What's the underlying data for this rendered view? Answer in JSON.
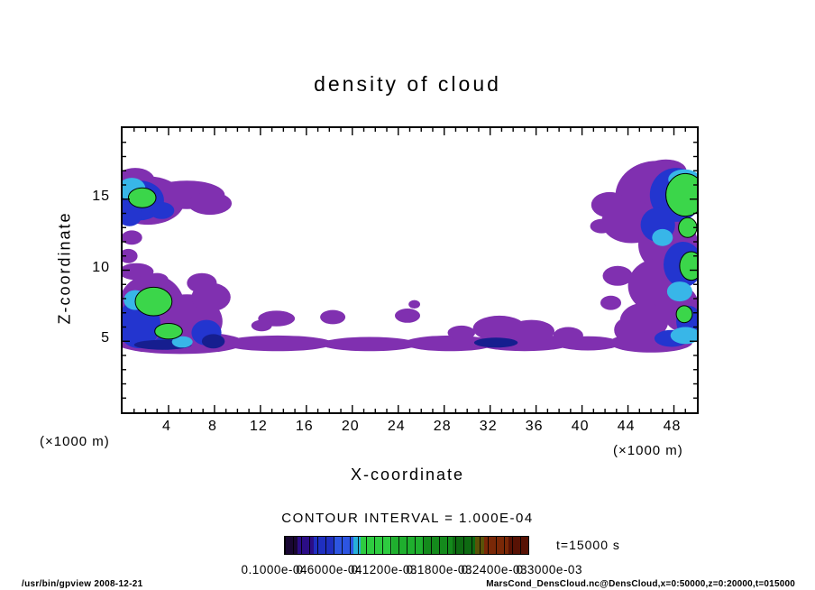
{
  "title": "density of cloud",
  "axes": {
    "x": {
      "label": "X-coordinate",
      "unit_left": "(×1000 m)",
      "unit_right": "(×1000 m)",
      "ticks": [
        4,
        8,
        12,
        16,
        20,
        24,
        28,
        32,
        36,
        40,
        44,
        48
      ],
      "range": [
        0,
        50
      ]
    },
    "y": {
      "label": "Z-coordinate",
      "ticks": [
        5,
        10,
        15
      ],
      "range": [
        0,
        20
      ]
    }
  },
  "colorbar": {
    "title": "CONTOUR INTERVAL = 1.000E-04",
    "labels": [
      "0.1000e-04",
      "0.6000e-04",
      "0.1200e-03",
      "0.1800e-03",
      "0.2400e-03",
      "0.3000e-03"
    ],
    "segments": [
      {
        "color": "#190733",
        "pct": 5
      },
      {
        "color": "#2b0d86",
        "pct": 7
      },
      {
        "color": "#1f2fc0",
        "pct": 8
      },
      {
        "color": "#2d55e2",
        "pct": 8
      },
      {
        "color": "#27b0d8",
        "pct": 3
      },
      {
        "color": "#2ecc40",
        "pct": 13
      },
      {
        "color": "#1faf2e",
        "pct": 13
      },
      {
        "color": "#148a1c",
        "pct": 12
      },
      {
        "color": "#0e6a12",
        "pct": 9
      },
      {
        "color": "#5a5208",
        "pct": 4
      },
      {
        "color": "#7a2807",
        "pct": 10
      },
      {
        "color": "#581204",
        "pct": 8
      }
    ]
  },
  "time_label": "t=15000 s",
  "footer": {
    "left": "/usr/bin/gpview  2008-12-21",
    "right": "MarsCond_DensCloud.nc@DensCloud,x=0:50000,z=0:20000,t=015000"
  },
  "chart_data": {
    "type": "heatmap",
    "title": "density of cloud",
    "xlabel": "X-coordinate (×1000 m)",
    "ylabel": "Z-coordinate (×1000 m)",
    "xlim": [
      0,
      50
    ],
    "ylim": [
      0,
      20
    ],
    "contour_interval": "1.000E-04",
    "time": "t=15000 s",
    "palette": {
      "purple": "#8030b0",
      "blue": "#2335cf",
      "darkblue": "#161e8f",
      "cyan": "#38b6e8",
      "green": "#3bd64a"
    },
    "regions": [
      {
        "x": 2.2,
        "z": 14.9,
        "rx": 3.2,
        "rz": 1.7,
        "c": "purple"
      },
      {
        "x": 5.6,
        "z": 15.3,
        "rx": 3.3,
        "rz": 1.0,
        "c": "purple"
      },
      {
        "x": 7.6,
        "z": 14.7,
        "rx": 1.9,
        "rz": 0.8,
        "c": "purple"
      },
      {
        "x": 1.1,
        "z": 16.3,
        "rx": 1.7,
        "rz": 0.9,
        "c": "purple"
      },
      {
        "x": 0.8,
        "z": 12.3,
        "rx": 0.9,
        "rz": 0.5,
        "c": "purple"
      },
      {
        "x": 1.2,
        "z": 9.9,
        "rx": 1.5,
        "rz": 0.6,
        "c": "purple"
      },
      {
        "x": 0.5,
        "z": 11.0,
        "rx": 0.8,
        "rz": 0.5,
        "c": "purple"
      },
      {
        "x": 2.5,
        "z": 7.4,
        "rx": 2.9,
        "rz": 2.3,
        "c": "purple"
      },
      {
        "x": 5.6,
        "z": 6.4,
        "rx": 3.1,
        "rz": 1.9,
        "c": "purple"
      },
      {
        "x": 7.7,
        "z": 8.1,
        "rx": 1.7,
        "rz": 1.0,
        "c": "purple"
      },
      {
        "x": 6.9,
        "z": 9.1,
        "rx": 1.3,
        "rz": 0.7,
        "c": "purple"
      },
      {
        "x": 3.0,
        "z": 9.3,
        "rx": 1.0,
        "rz": 0.5,
        "c": "purple"
      },
      {
        "x": 5.0,
        "z": 4.9,
        "rx": 5.6,
        "rz": 0.8,
        "c": "purple"
      },
      {
        "x": 13.5,
        "z": 4.85,
        "rx": 4.8,
        "rz": 0.55,
        "c": "purple"
      },
      {
        "x": 21.5,
        "z": 4.8,
        "rx": 4.2,
        "rz": 0.5,
        "c": "purple"
      },
      {
        "x": 28.5,
        "z": 4.85,
        "rx": 4.0,
        "rz": 0.55,
        "c": "purple"
      },
      {
        "x": 35.0,
        "z": 4.9,
        "rx": 4.2,
        "rz": 0.6,
        "c": "purple"
      },
      {
        "x": 40.5,
        "z": 4.85,
        "rx": 2.8,
        "rz": 0.5,
        "c": "purple"
      },
      {
        "x": 13.4,
        "z": 6.6,
        "rx": 1.6,
        "rz": 0.55,
        "c": "purple"
      },
      {
        "x": 12.1,
        "z": 6.1,
        "rx": 0.9,
        "rz": 0.4,
        "c": "purple"
      },
      {
        "x": 18.3,
        "z": 6.7,
        "rx": 1.1,
        "rz": 0.5,
        "c": "purple"
      },
      {
        "x": 24.8,
        "z": 6.8,
        "rx": 1.1,
        "rz": 0.5,
        "c": "purple"
      },
      {
        "x": 25.4,
        "z": 7.6,
        "rx": 0.5,
        "rz": 0.3,
        "c": "purple"
      },
      {
        "x": 32.8,
        "z": 5.9,
        "rx": 2.3,
        "rz": 0.9,
        "c": "purple"
      },
      {
        "x": 35.6,
        "z": 5.7,
        "rx": 2.0,
        "rz": 0.8,
        "c": "purple"
      },
      {
        "x": 38.8,
        "z": 5.4,
        "rx": 1.3,
        "rz": 0.6,
        "c": "purple"
      },
      {
        "x": 29.5,
        "z": 5.6,
        "rx": 1.2,
        "rz": 0.5,
        "c": "purple"
      },
      {
        "x": 46.5,
        "z": 15.2,
        "rx": 3.6,
        "rz": 2.5,
        "c": "purple"
      },
      {
        "x": 47.3,
        "z": 17.0,
        "rx": 1.8,
        "rz": 0.8,
        "c": "purple"
      },
      {
        "x": 44.3,
        "z": 13.4,
        "rx": 2.6,
        "rz": 1.5,
        "c": "purple"
      },
      {
        "x": 47.5,
        "z": 11.8,
        "rx": 2.6,
        "rz": 2.0,
        "c": "purple"
      },
      {
        "x": 46.6,
        "z": 8.9,
        "rx": 2.6,
        "rz": 1.9,
        "c": "purple"
      },
      {
        "x": 45.4,
        "z": 6.4,
        "rx": 2.1,
        "rz": 1.3,
        "c": "purple"
      },
      {
        "x": 48.6,
        "z": 7.3,
        "rx": 1.6,
        "rz": 1.6,
        "c": "purple"
      },
      {
        "x": 42.4,
        "z": 14.6,
        "rx": 1.6,
        "rz": 0.9,
        "c": "purple"
      },
      {
        "x": 41.7,
        "z": 13.1,
        "rx": 1.0,
        "rz": 0.5,
        "c": "purple"
      },
      {
        "x": 43.1,
        "z": 9.6,
        "rx": 1.3,
        "rz": 0.7,
        "c": "purple"
      },
      {
        "x": 42.5,
        "z": 7.7,
        "rx": 0.9,
        "rz": 0.5,
        "c": "purple"
      },
      {
        "x": 46.0,
        "z": 4.9,
        "rx": 3.6,
        "rz": 0.7,
        "c": "purple"
      },
      {
        "x": 44.1,
        "z": 5.8,
        "rx": 1.3,
        "rz": 0.9,
        "c": "purple"
      },
      {
        "x": 1.5,
        "z": 14.9,
        "rx": 2.1,
        "rz": 1.4,
        "c": "blue"
      },
      {
        "x": 0.6,
        "z": 13.9,
        "rx": 1.1,
        "rz": 0.8,
        "c": "blue"
      },
      {
        "x": 3.4,
        "z": 14.2,
        "rx": 1.1,
        "rz": 0.6,
        "c": "blue"
      },
      {
        "x": 1.4,
        "z": 6.2,
        "rx": 1.9,
        "rz": 1.7,
        "c": "blue"
      },
      {
        "x": 7.3,
        "z": 5.6,
        "rx": 1.3,
        "rz": 0.9,
        "c": "blue"
      },
      {
        "x": 3.9,
        "z": 4.9,
        "rx": 1.1,
        "rz": 0.5,
        "c": "blue"
      },
      {
        "x": 48.2,
        "z": 15.3,
        "rx": 2.3,
        "rz": 1.9,
        "c": "blue"
      },
      {
        "x": 46.6,
        "z": 13.2,
        "rx": 1.5,
        "rz": 1.2,
        "c": "blue"
      },
      {
        "x": 48.8,
        "z": 10.4,
        "rx": 1.7,
        "rz": 1.6,
        "c": "blue"
      },
      {
        "x": 49.3,
        "z": 6.4,
        "rx": 1.1,
        "rz": 1.1,
        "c": "blue"
      },
      {
        "x": 47.8,
        "z": 5.2,
        "rx": 1.5,
        "rz": 0.6,
        "c": "blue"
      },
      {
        "x": 7.9,
        "z": 5.0,
        "rx": 1.0,
        "rz": 0.5,
        "c": "darkblue"
      },
      {
        "x": 32.5,
        "z": 4.9,
        "rx": 1.9,
        "rz": 0.35,
        "c": "darkblue"
      },
      {
        "x": 3.5,
        "z": 4.75,
        "rx": 2.5,
        "rz": 0.35,
        "c": "darkblue"
      },
      {
        "x": 0.8,
        "z": 15.7,
        "rx": 1.2,
        "rz": 0.8,
        "c": "cyan"
      },
      {
        "x": 1.1,
        "z": 7.9,
        "rx": 1.0,
        "rz": 0.7,
        "c": "cyan"
      },
      {
        "x": 5.2,
        "z": 4.95,
        "rx": 0.9,
        "rz": 0.4,
        "c": "cyan"
      },
      {
        "x": 48.9,
        "z": 16.4,
        "rx": 1.4,
        "rz": 0.7,
        "c": "cyan"
      },
      {
        "x": 48.5,
        "z": 8.5,
        "rx": 1.1,
        "rz": 0.7,
        "c": "cyan"
      },
      {
        "x": 49.0,
        "z": 5.4,
        "rx": 1.3,
        "rz": 0.6,
        "c": "cyan"
      },
      {
        "x": 47.0,
        "z": 12.3,
        "rx": 0.9,
        "rz": 0.6,
        "c": "cyan"
      },
      {
        "x": 1.7,
        "z": 15.1,
        "rx": 1.2,
        "rz": 0.7,
        "c": "green",
        "o": true
      },
      {
        "x": 2.7,
        "z": 7.8,
        "rx": 1.6,
        "rz": 1.0,
        "c": "green",
        "o": true
      },
      {
        "x": 4.0,
        "z": 5.7,
        "rx": 1.2,
        "rz": 0.55,
        "c": "green",
        "o": true
      },
      {
        "x": 49.0,
        "z": 15.3,
        "rx": 1.7,
        "rz": 1.5,
        "c": "green",
        "o": true
      },
      {
        "x": 49.5,
        "z": 10.3,
        "rx": 1.0,
        "rz": 1.0,
        "c": "green",
        "o": true
      },
      {
        "x": 49.2,
        "z": 13.0,
        "rx": 0.8,
        "rz": 0.7,
        "c": "green",
        "o": true
      },
      {
        "x": 48.9,
        "z": 6.9,
        "rx": 0.7,
        "rz": 0.6,
        "c": "green",
        "o": true
      }
    ]
  }
}
